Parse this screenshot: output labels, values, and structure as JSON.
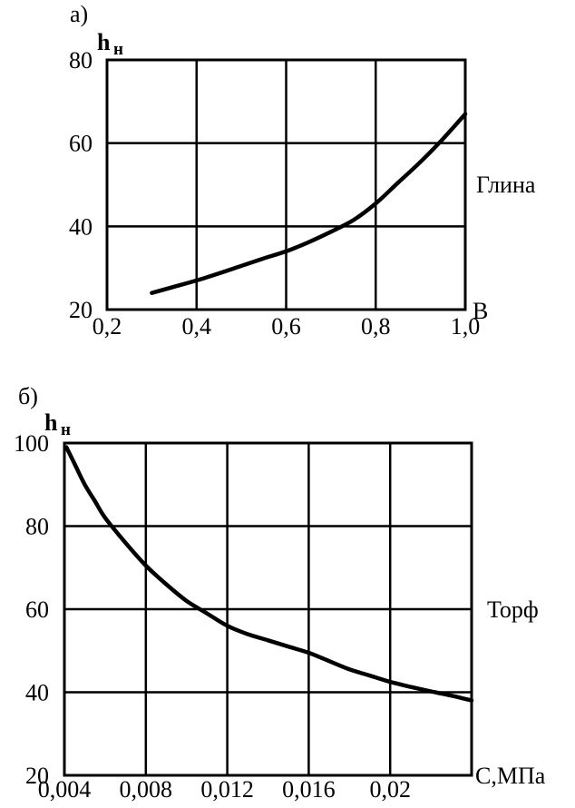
{
  "chart_data": [
    {
      "type": "line",
      "panel_label": "а)",
      "ylabel": "h",
      "ylabel_sub": "н",
      "xlabel": "B",
      "side_label": "Глина",
      "x_ticks": [
        "0,2",
        "0,4",
        "0,6",
        "0,8",
        "1,0"
      ],
      "y_ticks": [
        "20",
        "40",
        "60",
        "80"
      ],
      "xlim": [
        0.2,
        1.0
      ],
      "ylim": [
        20,
        80
      ],
      "grid": true,
      "series": [
        {
          "x": [
            0.3,
            0.35,
            0.4,
            0.45,
            0.5,
            0.55,
            0.6,
            0.65,
            0.7,
            0.75,
            0.8,
            0.85,
            0.9,
            0.95,
            1.0
          ],
          "y": [
            24,
            25.5,
            27,
            28.7,
            30.5,
            32.3,
            34,
            36.2,
            38.7,
            41.5,
            45.5,
            50.5,
            55.5,
            61,
            67
          ]
        }
      ]
    },
    {
      "type": "line",
      "panel_label": "б)",
      "ylabel": "h",
      "ylabel_sub": "н",
      "xlabel": "C,МПа",
      "side_label": "Торф",
      "x_ticks": [
        "0,004",
        "0,008",
        "0,012",
        "0,016",
        "0,02"
      ],
      "y_ticks": [
        "20",
        "40",
        "60",
        "80",
        "100"
      ],
      "xlim": [
        0.004,
        0.024
      ],
      "ylim": [
        20,
        100
      ],
      "grid": true,
      "series": [
        {
          "x": [
            0.0041,
            0.0045,
            0.005,
            0.0055,
            0.006,
            0.007,
            0.008,
            0.009,
            0.01,
            0.011,
            0.012,
            0.013,
            0.014,
            0.015,
            0.016,
            0.017,
            0.018,
            0.019,
            0.02,
            0.021,
            0.022,
            0.023,
            0.024
          ],
          "y": [
            99,
            95,
            90,
            86,
            82,
            76,
            70.5,
            66,
            62,
            59,
            56,
            54,
            52.5,
            51,
            49.5,
            47.5,
            45.5,
            44,
            42.5,
            41.3,
            40.2,
            39.2,
            38
          ]
        }
      ]
    }
  ]
}
